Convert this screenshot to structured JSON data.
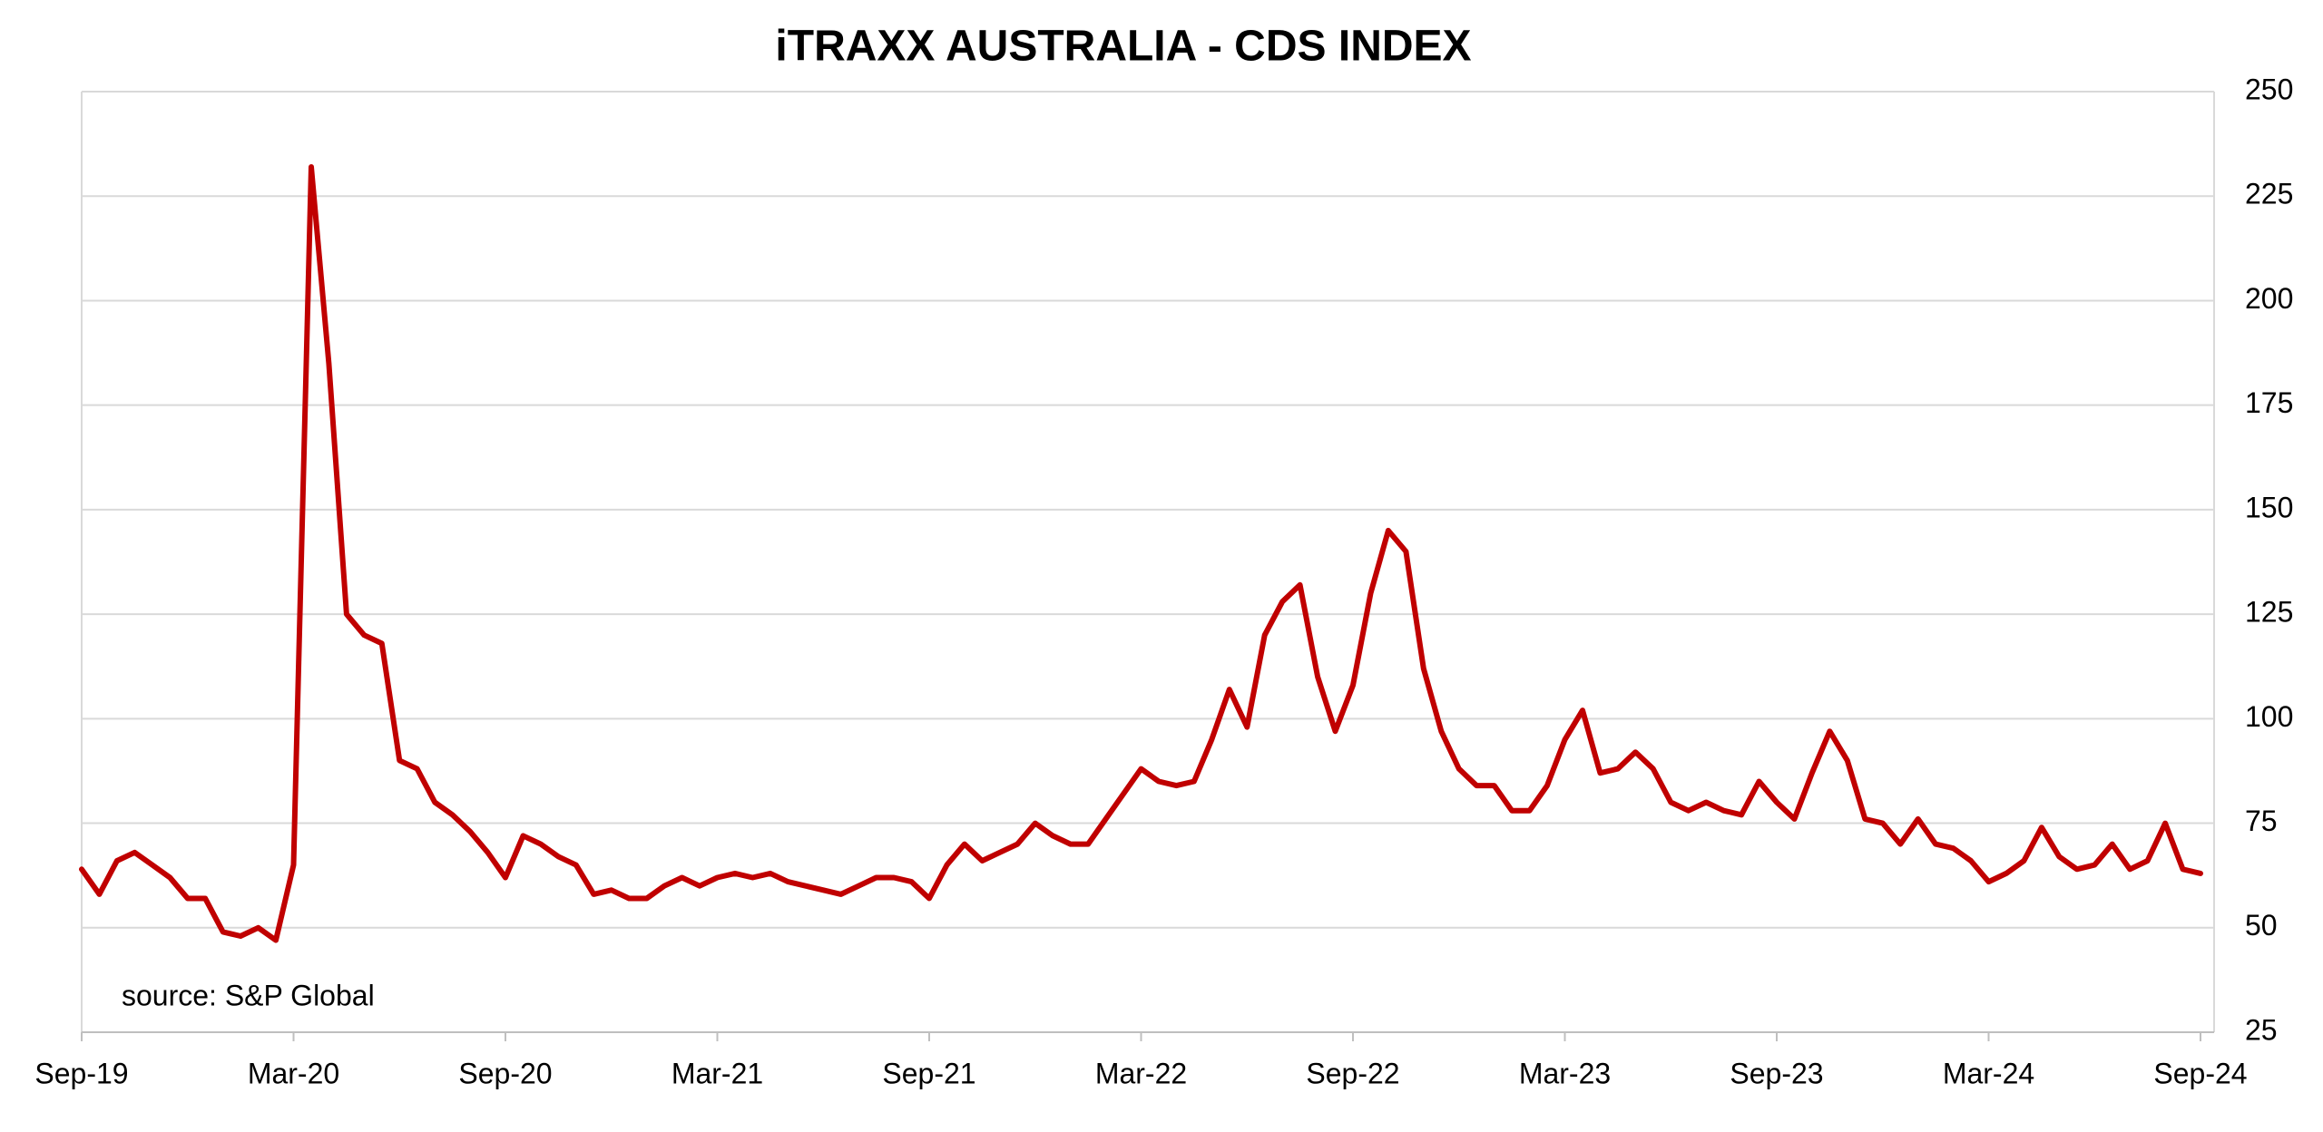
{
  "chart_data": {
    "type": "line",
    "title": "iTRAXX AUSTRALIA - CDS INDEX",
    "annotation": "source: S&P Global",
    "categories": [
      "Sep-19",
      null,
      null,
      null,
      null,
      null,
      null,
      null,
      null,
      null,
      null,
      null,
      "Mar-20",
      null,
      null,
      null,
      null,
      null,
      null,
      null,
      null,
      null,
      null,
      null,
      "Sep-20",
      null,
      null,
      null,
      null,
      null,
      null,
      null,
      null,
      null,
      null,
      null,
      "Mar-21",
      null,
      null,
      null,
      null,
      null,
      null,
      null,
      null,
      null,
      null,
      null,
      "Sep-21",
      null,
      null,
      null,
      null,
      null,
      null,
      null,
      null,
      null,
      null,
      null,
      "Mar-22",
      null,
      null,
      null,
      null,
      null,
      null,
      null,
      null,
      null,
      null,
      null,
      "Sep-22",
      null,
      null,
      null,
      null,
      null,
      null,
      null,
      null,
      null,
      null,
      null,
      "Mar-23",
      null,
      null,
      null,
      null,
      null,
      null,
      null,
      null,
      null,
      null,
      null,
      "Sep-23",
      null,
      null,
      null,
      null,
      null,
      null,
      null,
      null,
      null,
      null,
      null,
      "Mar-24",
      null,
      null,
      null,
      null,
      null,
      null,
      null,
      null,
      null,
      null,
      null,
      "Sep-24"
    ],
    "values": [
      64,
      58,
      66,
      68,
      65,
      62,
      57,
      57,
      49,
      48,
      50,
      47,
      65,
      232,
      185,
      125,
      120,
      118,
      90,
      88,
      80,
      77,
      73,
      68,
      62,
      72,
      70,
      67,
      65,
      58,
      59,
      57,
      57,
      60,
      62,
      60,
      62,
      63,
      62,
      63,
      61,
      60,
      59,
      58,
      60,
      62,
      62,
      61,
      57,
      65,
      70,
      66,
      68,
      70,
      75,
      72,
      70,
      70,
      76,
      82,
      88,
      85,
      84,
      85,
      95,
      107,
      98,
      120,
      128,
      132,
      110,
      97,
      108,
      130,
      145,
      140,
      112,
      97,
      88,
      84,
      84,
      78,
      78,
      84,
      95,
      102,
      87,
      88,
      92,
      88,
      80,
      78,
      80,
      78,
      77,
      85,
      80,
      76,
      87,
      97,
      90,
      76,
      75,
      70,
      76,
      70,
      69,
      66,
      61,
      63,
      66,
      74,
      67,
      64,
      65,
      70,
      64,
      66,
      75,
      64,
      63
    ],
    "color": "#c00000",
    "ylim": [
      25,
      250
    ],
    "yticks": [
      25,
      50,
      75,
      100,
      125,
      150,
      175,
      200,
      225,
      250
    ],
    "y_axis_side": "right",
    "grid": true
  }
}
